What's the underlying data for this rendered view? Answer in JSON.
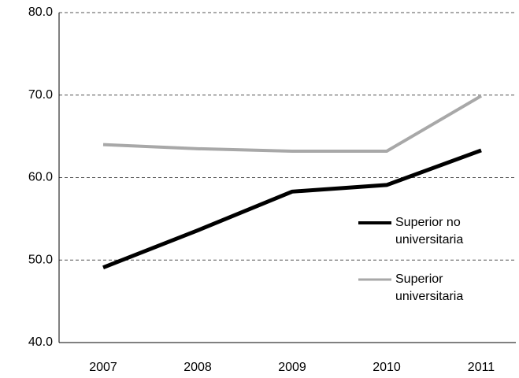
{
  "chart_data": {
    "type": "line",
    "categories": [
      "2007",
      "2008",
      "2009",
      "2010",
      "2011"
    ],
    "series": [
      {
        "name": "Superior no universitaria",
        "color": "#000000",
        "values": [
          49.1,
          53.6,
          58.3,
          59.1,
          63.3
        ]
      },
      {
        "name": "Superior universitaria",
        "color": "#a8a8a8",
        "values": [
          64.0,
          63.5,
          63.2,
          63.2,
          69.9
        ]
      }
    ],
    "ylim": [
      40,
      80
    ],
    "yticks": [
      {
        "value": 40,
        "label": "40.0"
      },
      {
        "value": 50,
        "label": "50.0"
      },
      {
        "value": 60,
        "label": "60.0"
      },
      {
        "value": 70,
        "label": "70.0"
      },
      {
        "value": 80,
        "label": "80.0"
      }
    ],
    "grid": true
  }
}
